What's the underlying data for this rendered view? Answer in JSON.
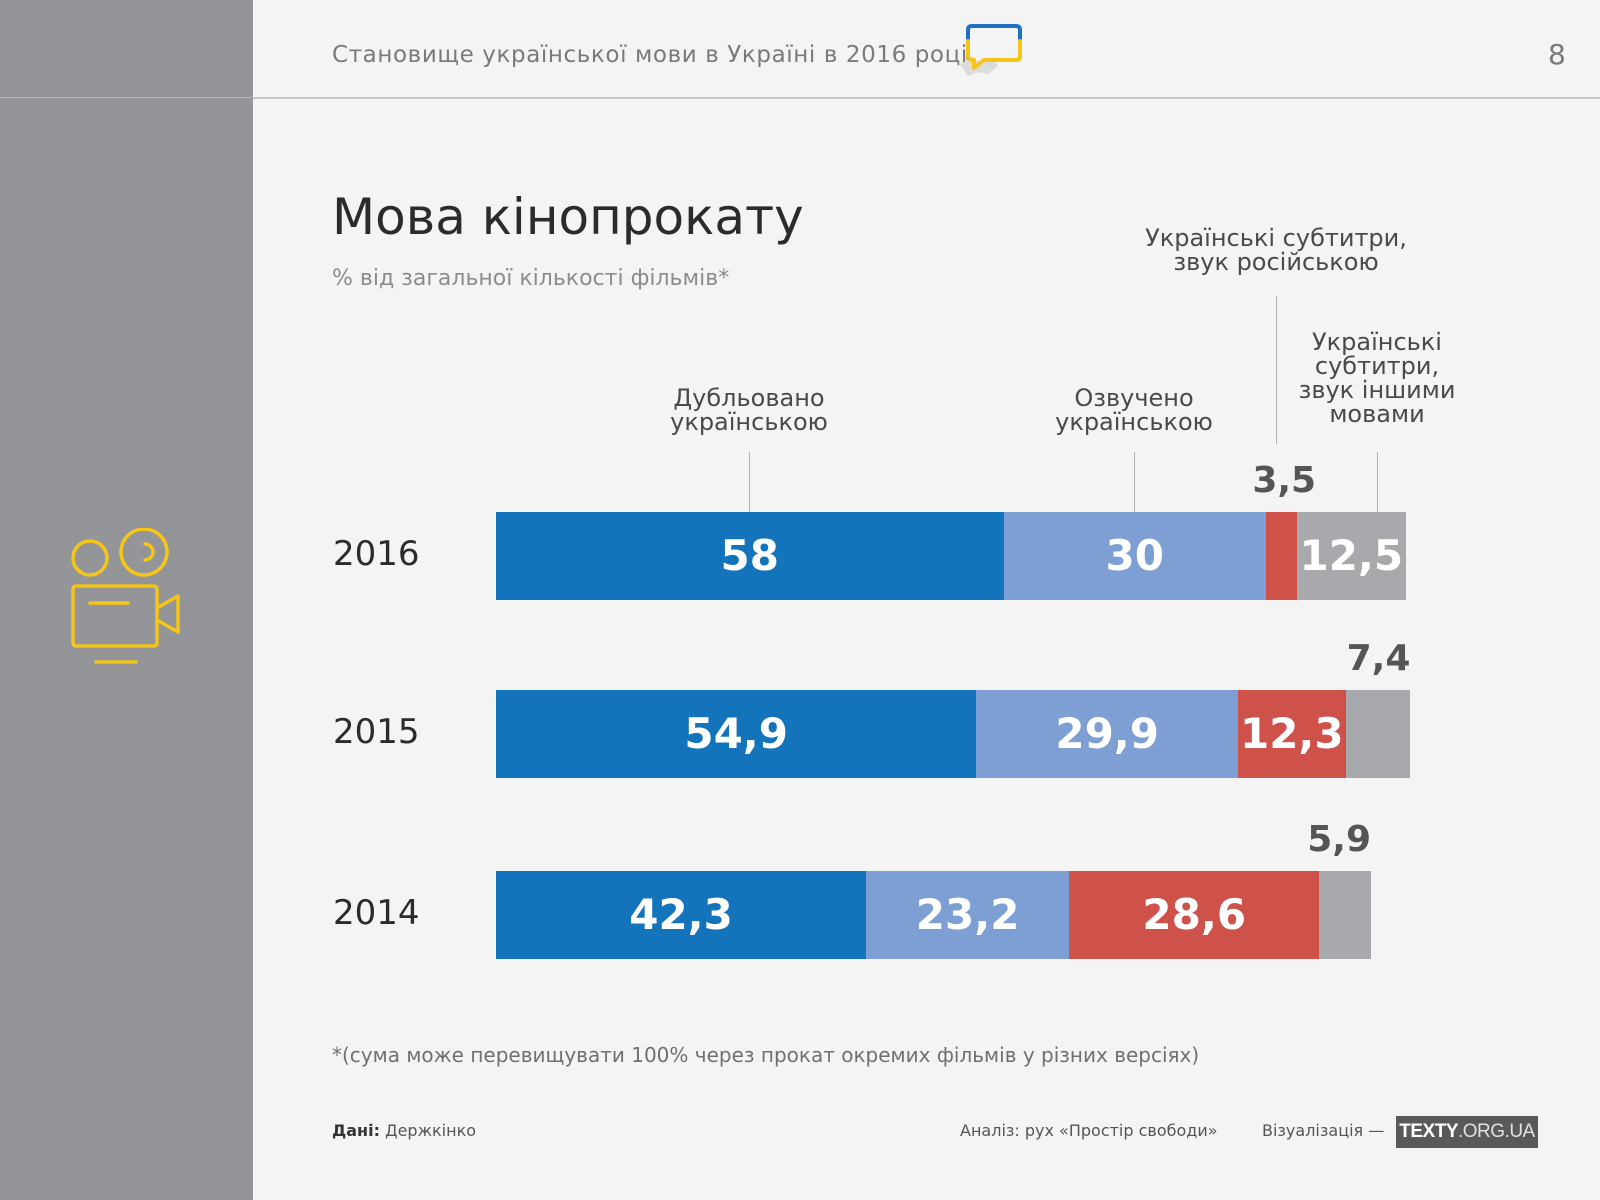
{
  "header": {
    "title": "Становище української мови в Україні в 2016 році",
    "page_number": "8"
  },
  "chart_data": {
    "type": "bar",
    "orientation": "horizontal",
    "stacked": true,
    "title": "Мова кінопрокату",
    "subtitle": "% від загальної кількості фільмів*",
    "categories": [
      "2016",
      "2015",
      "2014"
    ],
    "series": [
      {
        "name": "Дубльовано українською",
        "color": "#1373bb",
        "values": [
          58,
          54.9,
          42.3
        ],
        "labels": [
          "58",
          "54,9",
          "42,3"
        ]
      },
      {
        "name": "Озвучено українською",
        "color": "#7e9fd4",
        "values": [
          30,
          29.9,
          23.2
        ],
        "labels": [
          "30",
          "29,9",
          "23,2"
        ]
      },
      {
        "name": "Українські субтитри, звук російською",
        "color": "#cf524a",
        "values": [
          3.5,
          12.3,
          28.6
        ],
        "labels": [
          "3,5",
          "12,3",
          "28,6"
        ]
      },
      {
        "name": "Українські субтитри, звук іншими мовами",
        "color": "#a7a9ac",
        "values": [
          12.5,
          7.4,
          5.9
        ],
        "labels": [
          "12,5",
          "7,4",
          "5,9"
        ]
      }
    ],
    "series_label_lines": [
      [
        "Дубльовано",
        "українською"
      ],
      [
        "Озвучено",
        "українською"
      ],
      [
        "Українські субтитри,",
        "звук російською"
      ],
      [
        "Українські",
        "субтитри,",
        "звук іншими",
        "мовами"
      ]
    ],
    "grid": false,
    "legend": "inline labels above top bar"
  },
  "footnote": "*(сума може перевищувати 100% через прокат окремих фільмів у різних версіях)",
  "credits": {
    "data_label": "Дані:",
    "data_value": "Держкінко",
    "analysis": "Аналіз: рух «Простір свободи»",
    "visualization": "Візуалізація —",
    "brand_bold": "TEXTY",
    "brand_light": ".ORG.UA"
  },
  "icons": {
    "logo": "speech-bubble-ukraine-map-icon",
    "section": "movie-camera-icon"
  },
  "colors": {
    "sidebar": "#939598",
    "accent_yellow": "#f5c518",
    "accent_blue": "#1f70c1"
  }
}
